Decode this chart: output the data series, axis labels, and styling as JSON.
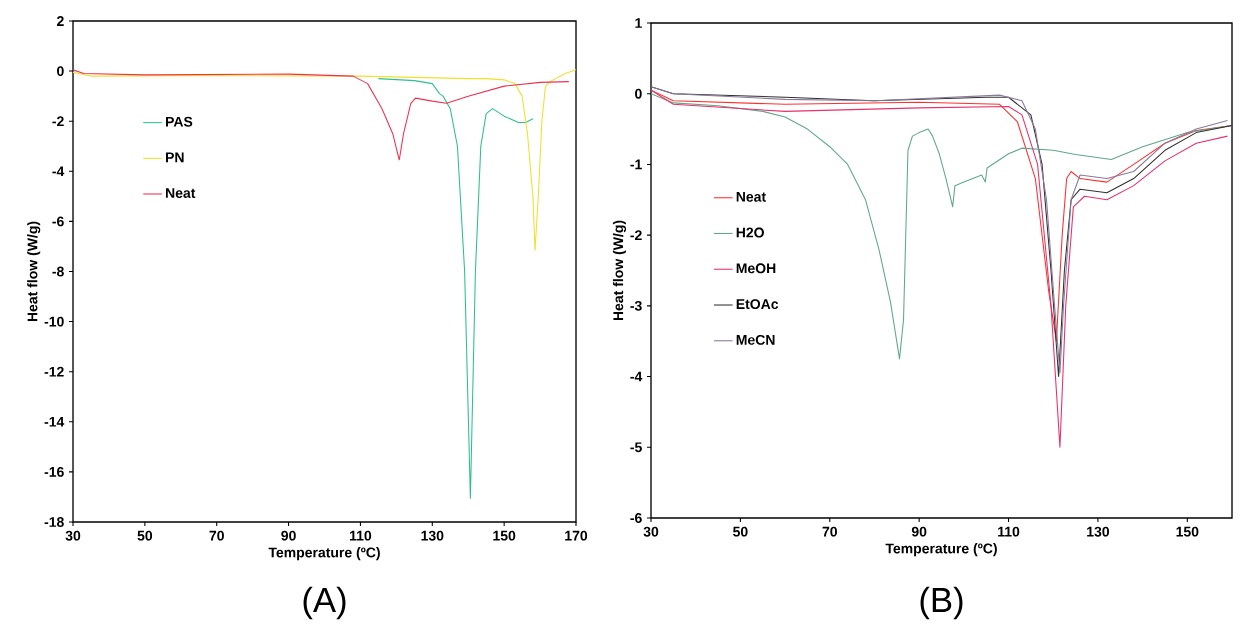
{
  "chart_data": [
    {
      "type": "line",
      "xlabel": "Temperature (ºC)",
      "ylabel": "Heat flow (W/g)",
      "annotations": [
        "(A)"
      ],
      "legend": "top left",
      "xlim": [
        30,
        170
      ],
      "ylim": [
        -18,
        2
      ],
      "xticks": [
        30,
        50,
        70,
        90,
        110,
        130,
        150,
        170
      ],
      "yticks": [
        -18,
        -16,
        -14,
        -12,
        -10,
        -8,
        -6,
        -4,
        -2,
        0,
        2
      ],
      "series": [
        {
          "name": "PAS",
          "color": "#2fbf8f",
          "x": [
            115,
            125,
            130,
            132,
            133,
            135,
            137,
            139,
            140.6,
            142,
            143.5,
            145,
            146.8,
            150,
            154,
            156,
            158
          ],
          "values": [
            -0.3,
            -0.38,
            -0.5,
            -0.9,
            -1.0,
            -1.5,
            -3,
            -8,
            -17.05,
            -8,
            -3,
            -1.7,
            -1.5,
            -1.8,
            -2.05,
            -2.05,
            -1.9
          ]
        },
        {
          "name": "PN",
          "color": "#f0e030",
          "x": [
            30,
            35,
            60,
            110,
            140,
            145,
            150,
            153,
            155,
            156.5,
            158,
            158.6,
            159.5,
            160.5,
            161.5,
            163,
            167,
            170
          ],
          "values": [
            -0.05,
            -0.2,
            -0.18,
            -0.2,
            -0.3,
            -0.3,
            -0.35,
            -0.5,
            -1,
            -2.5,
            -5,
            -7.15,
            -5,
            -2,
            -0.6,
            -0.4,
            -0.1,
            0.05
          ]
        },
        {
          "name": "Neat",
          "color": "#ee3350",
          "x": [
            30,
            33,
            50,
            90,
            108,
            112,
            116,
            119,
            120.8,
            122,
            124,
            125.3,
            130,
            134,
            140,
            150,
            160,
            168
          ],
          "values": [
            0.05,
            -0.1,
            -0.15,
            -0.12,
            -0.2,
            -0.5,
            -1.5,
            -2.5,
            -3.55,
            -2.5,
            -1.3,
            -1.08,
            -1.2,
            -1.28,
            -1.0,
            -0.6,
            -0.45,
            -0.42
          ]
        }
      ]
    },
    {
      "type": "line",
      "xlabel": "Temperature (ºC)",
      "ylabel": "Heat flow (W/g)",
      "annotations": [
        "(B)"
      ],
      "legend": "left",
      "xlim": [
        30,
        160
      ],
      "ylim": [
        -6,
        1
      ],
      "xticks": [
        30,
        50,
        70,
        90,
        110,
        130,
        150
      ],
      "yticks": [
        -6,
        -5,
        -4,
        -3,
        -2,
        -1,
        0,
        1
      ],
      "series": [
        {
          "name": "Neat",
          "color": "#ff3030",
          "x": [
            30,
            35,
            60,
            90,
            108,
            112,
            116,
            119,
            120.7,
            122,
            123,
            124,
            126,
            132,
            138,
            145,
            152,
            160
          ],
          "values": [
            0.05,
            -0.1,
            -0.15,
            -0.12,
            -0.15,
            -0.4,
            -1.2,
            -2.8,
            -3.5,
            -2,
            -1.2,
            -1.1,
            -1.2,
            -1.25,
            -1.0,
            -0.7,
            -0.52,
            -0.45
          ]
        },
        {
          "name": "H2O",
          "color": "#5fa88a",
          "x": [
            30,
            35,
            45,
            55,
            60,
            65,
            70,
            74,
            78,
            81,
            83.6,
            85.6,
            86.5,
            87,
            87.5,
            88.5,
            90,
            92,
            93,
            94.5,
            96,
            97.5,
            98,
            100,
            104,
            104.8,
            105.2,
            110,
            113,
            120,
            125,
            133,
            140,
            150,
            160
          ],
          "values": [
            0.0,
            -0.13,
            -0.17,
            -0.25,
            -0.33,
            -0.5,
            -0.75,
            -1.0,
            -1.5,
            -2.2,
            -2.95,
            -3.75,
            -3.2,
            -2.0,
            -0.8,
            -0.6,
            -0.55,
            -0.5,
            -0.6,
            -0.85,
            -1.2,
            -1.6,
            -1.3,
            -1.25,
            -1.15,
            -1.25,
            -1.05,
            -0.85,
            -0.77,
            -0.8,
            -0.86,
            -0.93,
            -0.75,
            -0.55,
            -0.45
          ]
        },
        {
          "name": "MeOH",
          "color": "#e8306a",
          "x": [
            30,
            35,
            60,
            90,
            110,
            113,
            116.5,
            119.5,
            121.5,
            122.8,
            124.5,
            127,
            132,
            138,
            145,
            152,
            159
          ],
          "values": [
            0.05,
            -0.15,
            -0.25,
            -0.2,
            -0.18,
            -0.3,
            -1,
            -3,
            -5.0,
            -3,
            -1.6,
            -1.45,
            -1.5,
            -1.3,
            -0.95,
            -0.7,
            -0.6
          ]
        },
        {
          "name": "EtOAc",
          "color": "#303030",
          "x": [
            30,
            35,
            60,
            80,
            105,
            110,
            115,
            117.5,
            119.5,
            121.2,
            122.5,
            124,
            126,
            132,
            138,
            145,
            152,
            160
          ],
          "values": [
            0.1,
            0.0,
            -0.05,
            -0.1,
            -0.05,
            -0.05,
            -0.3,
            -1.0,
            -2.5,
            -4.0,
            -2.5,
            -1.5,
            -1.35,
            -1.4,
            -1.2,
            -0.8,
            -0.55,
            -0.45
          ]
        },
        {
          "name": "MeCN",
          "color": "#8a7a9a",
          "x": [
            30,
            35,
            60,
            80,
            108,
            113,
            116,
            118.5,
            120.3,
            121.5,
            122.3,
            124,
            126,
            132,
            138,
            145,
            152,
            159
          ],
          "values": [
            0.1,
            0.0,
            -0.08,
            -0.1,
            -0.02,
            -0.1,
            -0.5,
            -1.5,
            -3,
            -3.95,
            -3,
            -1.5,
            -1.15,
            -1.2,
            -1.1,
            -0.7,
            -0.5,
            -0.38
          ]
        }
      ]
    }
  ]
}
